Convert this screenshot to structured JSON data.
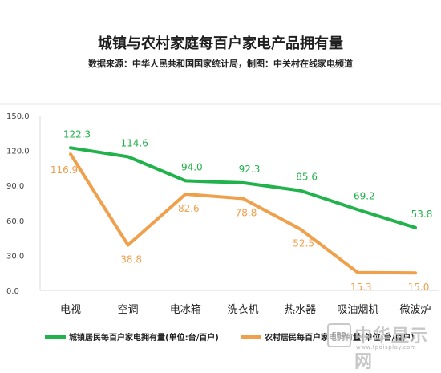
{
  "chart_data": {
    "type": "line",
    "title": "城镇与农村家庭每百户家电产品拥有量",
    "subtitle": "数据来源：中华人民共和国国家统计局，制图：中关村在线家电频道",
    "categories": [
      "电视",
      "空调",
      "电冰箱",
      "洗衣机",
      "热水器",
      "吸油烟机",
      "微波炉"
    ],
    "series": [
      {
        "name": "城镇居民每百户家电拥有量(单位:台/百户)",
        "values": [
          122.3,
          114.6,
          94.0,
          92.3,
          85.6,
          69.2,
          53.8
        ],
        "color": "#21b24b"
      },
      {
        "name": "农村居民每百户家电拥有量(单位:台/百户)",
        "values": [
          116.9,
          38.8,
          82.6,
          78.8,
          52.5,
          15.3,
          15.0
        ],
        "color": "#f0a04b"
      }
    ],
    "yticks": [
      "0.0",
      "30.0",
      "60.0",
      "90.0",
      "120.0",
      "150.0"
    ],
    "ylim": [
      0,
      150
    ],
    "grid": false,
    "legend_position": "bottom"
  },
  "watermark": {
    "box_label": "FPD",
    "text": "中华显示网",
    "subtext": "www.fpdisplay.com"
  }
}
